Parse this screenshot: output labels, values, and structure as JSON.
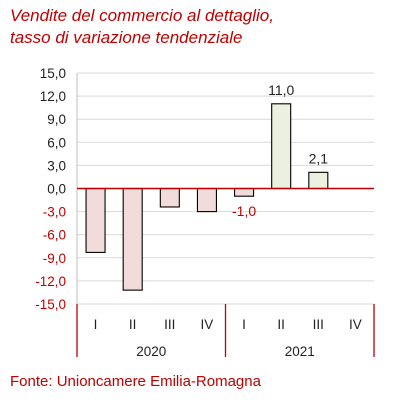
{
  "title_lines": [
    "Vendite del commercio al dettaglio,",
    "tasso di variazione tendenziale"
  ],
  "source": "Fonte: Unioncamere Emilia-Romagna",
  "colors": {
    "accent": "#c00000",
    "negative_fill": "#f2dcdb",
    "positive_fill": "#ebf1de",
    "bar_stroke": "#000000",
    "grid": "#d9d9d9",
    "zero_line": "#c00000",
    "positive_tick_text": "#222222",
    "negative_tick_text": "#c00000"
  },
  "chart_data": {
    "type": "bar",
    "categories": [
      "I",
      "II",
      "III",
      "IV",
      "I",
      "II",
      "III",
      "IV"
    ],
    "groups": [
      {
        "label": "2020",
        "categories": [
          "I",
          "II",
          "III",
          "IV"
        ]
      },
      {
        "label": "2021",
        "categories": [
          "I",
          "II",
          "III",
          "IV"
        ]
      }
    ],
    "values": [
      -8.3,
      -13.2,
      -2.4,
      -3.0,
      -1.0,
      11.0,
      2.1,
      null
    ],
    "data_labels": [
      "",
      "",
      "",
      "",
      "-1,0",
      "11,0",
      "2,1",
      ""
    ],
    "ylim": [
      -15,
      15
    ],
    "y_ticks": [
      "15,0",
      "12,0",
      "9,0",
      "6,0",
      "3,0",
      "0,0",
      "-3,0",
      "-6,0",
      "-9,0",
      "-12,0",
      "-15,0"
    ],
    "y_tick_values": [
      15,
      12,
      9,
      6,
      3,
      0,
      -3,
      -6,
      -9,
      -12,
      -15
    ],
    "grid": true,
    "legend": false
  }
}
